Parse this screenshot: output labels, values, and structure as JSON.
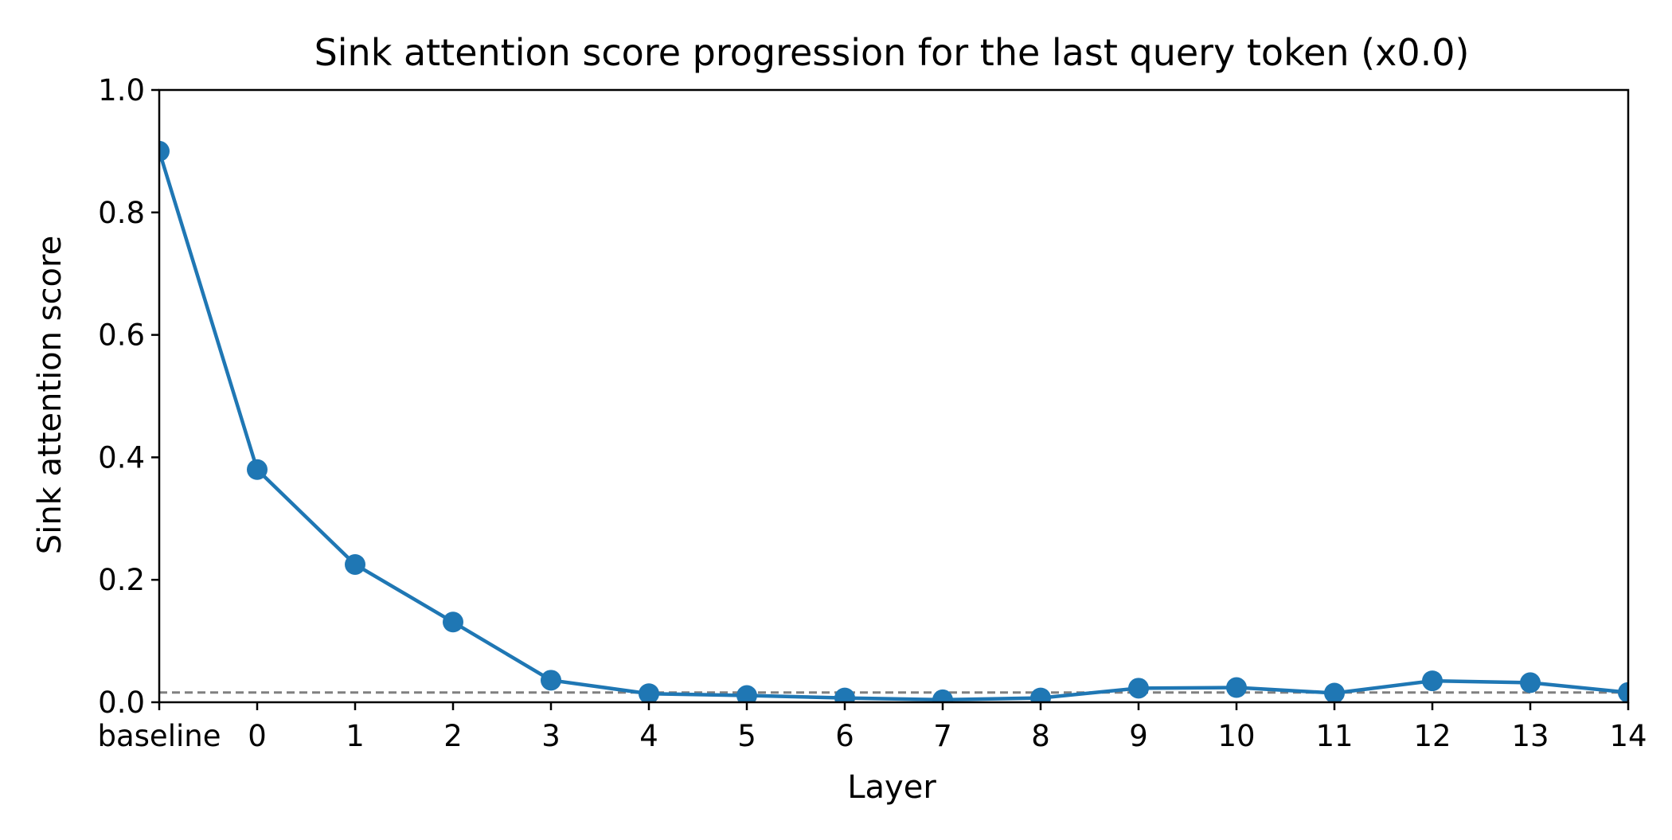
{
  "chart_data": {
    "type": "line",
    "title": "Sink attention score progression for the last query token (x0.0)",
    "xlabel": "Layer",
    "ylabel": "Sink attention score",
    "categories": [
      "baseline",
      "0",
      "1",
      "2",
      "3",
      "4",
      "5",
      "6",
      "7",
      "8",
      "9",
      "10",
      "11",
      "12",
      "13",
      "14"
    ],
    "series": [
      {
        "values": [
          0.9,
          0.38,
          0.225,
          0.131,
          0.036,
          0.014,
          0.011,
          0.007,
          0.004,
          0.007,
          0.023,
          0.024,
          0.015,
          0.035,
          0.032,
          0.016
        ],
        "color": "#1f77b4",
        "marker": "circle"
      }
    ],
    "reference_line": {
      "y": 0.016,
      "style": "dashed",
      "color": "#808080"
    },
    "ylim": [
      0.0,
      1.0
    ],
    "yticks": [
      "0.0",
      "0.2",
      "0.4",
      "0.6",
      "0.8",
      "1.0"
    ],
    "grid": false,
    "legend": false
  }
}
